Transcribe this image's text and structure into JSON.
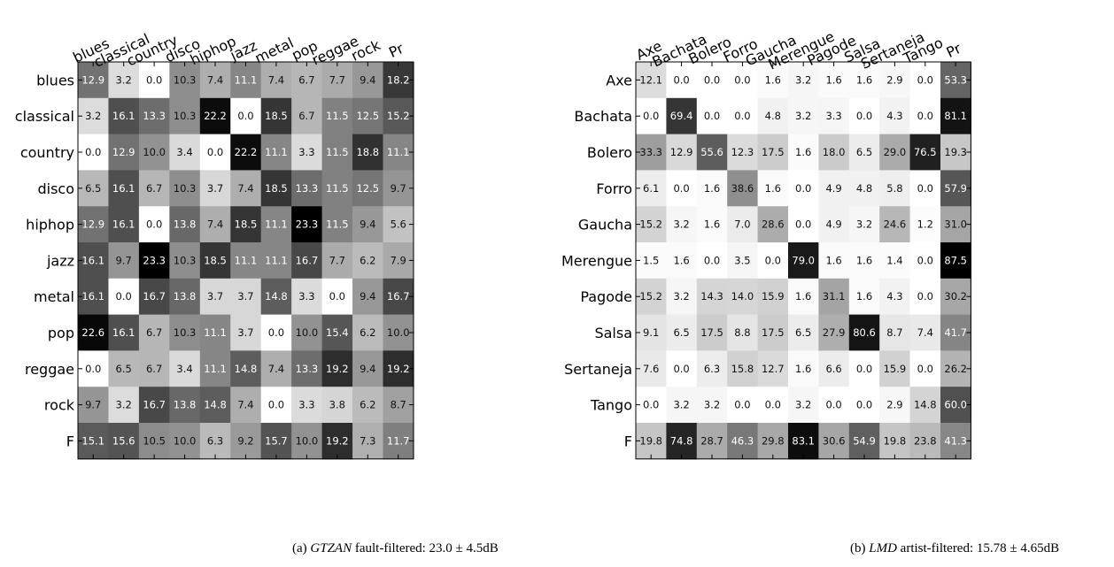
{
  "chart_data": [
    {
      "type": "heatmap",
      "caption": {
        "prefix": "(a) ",
        "dataset": "GTZAN",
        "rest": " fault-filtered: 23.0 ± 4.5dB"
      },
      "columns": [
        "blues",
        "classical",
        "country",
        "disco",
        "hiphop",
        "jazz",
        "metal",
        "pop",
        "reggae",
        "rock",
        "Pr"
      ],
      "rows": [
        "blues",
        "classical",
        "country",
        "disco",
        "hiphop",
        "jazz",
        "metal",
        "pop",
        "reggae",
        "rock",
        "F"
      ],
      "values": [
        [
          12.9,
          3.2,
          0.0,
          10.3,
          7.4,
          11.1,
          7.4,
          6.7,
          7.7,
          9.4,
          18.2
        ],
        [
          3.2,
          16.1,
          13.3,
          10.3,
          22.2,
          0.0,
          18.5,
          6.7,
          11.5,
          12.5,
          15.2
        ],
        [
          0.0,
          12.9,
          10.0,
          3.4,
          0.0,
          22.2,
          11.1,
          3.3,
          11.5,
          18.8,
          11.1
        ],
        [
          6.5,
          16.1,
          6.7,
          10.3,
          3.7,
          7.4,
          18.5,
          13.3,
          11.5,
          12.5,
          9.7
        ],
        [
          12.9,
          16.1,
          0.0,
          13.8,
          7.4,
          18.5,
          11.1,
          23.3,
          11.5,
          9.4,
          5.6
        ],
        [
          16.1,
          9.7,
          23.3,
          10.3,
          18.5,
          11.1,
          11.1,
          16.7,
          7.7,
          6.2,
          7.9
        ],
        [
          16.1,
          0.0,
          16.7,
          13.8,
          3.7,
          3.7,
          14.8,
          3.3,
          0.0,
          9.4,
          16.7
        ],
        [
          22.6,
          16.1,
          6.7,
          10.3,
          11.1,
          3.7,
          0.0,
          10.0,
          15.4,
          6.2,
          10.0
        ],
        [
          0.0,
          6.5,
          6.7,
          3.4,
          11.1,
          14.8,
          7.4,
          13.3,
          19.2,
          9.4,
          19.2
        ],
        [
          9.7,
          3.2,
          16.7,
          13.8,
          14.8,
          7.4,
          0.0,
          3.3,
          3.8,
          6.2,
          8.7
        ],
        [
          15.1,
          15.6,
          10.5,
          10.0,
          6.3,
          9.2,
          15.7,
          10.0,
          19.2,
          7.3,
          11.7
        ]
      ],
      "colormap": "gray_r",
      "color_scale_max": 23.3
    },
    {
      "type": "heatmap",
      "caption": {
        "prefix": "(b) ",
        "dataset": "LMD",
        "rest": " artist-filtered: 15.78 ± 4.65dB"
      },
      "columns": [
        "Axe",
        "Bachata",
        "Bolero",
        "Forro",
        "Gaucha",
        "Merengue",
        "Pagode",
        "Salsa",
        "Sertaneja",
        "Tango",
        "Pr"
      ],
      "rows": [
        "Axe",
        "Bachata",
        "Bolero",
        "Forro",
        "Gaucha",
        "Merengue",
        "Pagode",
        "Salsa",
        "Sertaneja",
        "Tango",
        "F"
      ],
      "values": [
        [
          12.1,
          0.0,
          0.0,
          0.0,
          1.6,
          3.2,
          1.6,
          1.6,
          2.9,
          0.0,
          53.3
        ],
        [
          0.0,
          69.4,
          0.0,
          0.0,
          4.8,
          3.2,
          3.3,
          0.0,
          4.3,
          0.0,
          81.1
        ],
        [
          33.3,
          12.9,
          55.6,
          12.3,
          17.5,
          1.6,
          18.0,
          6.5,
          29.0,
          76.5,
          19.3
        ],
        [
          6.1,
          0.0,
          1.6,
          38.6,
          1.6,
          0.0,
          4.9,
          4.8,
          5.8,
          0.0,
          57.9
        ],
        [
          15.2,
          3.2,
          1.6,
          7.0,
          28.6,
          0.0,
          4.9,
          3.2,
          24.6,
          1.2,
          31.0
        ],
        [
          1.5,
          1.6,
          0.0,
          3.5,
          0.0,
          79.0,
          1.6,
          1.6,
          1.4,
          0.0,
          87.5
        ],
        [
          15.2,
          3.2,
          14.3,
          14.0,
          15.9,
          1.6,
          31.1,
          1.6,
          4.3,
          0.0,
          30.2
        ],
        [
          9.1,
          6.5,
          17.5,
          8.8,
          17.5,
          6.5,
          27.9,
          80.6,
          8.7,
          7.4,
          41.7
        ],
        [
          7.6,
          0.0,
          6.3,
          15.8,
          12.7,
          1.6,
          6.6,
          0.0,
          15.9,
          0.0,
          26.2
        ],
        [
          0.0,
          3.2,
          3.2,
          0.0,
          0.0,
          3.2,
          0.0,
          0.0,
          2.9,
          14.8,
          60.0
        ],
        [
          19.8,
          74.8,
          28.7,
          46.3,
          29.8,
          83.1,
          30.6,
          54.9,
          19.8,
          23.8,
          41.3
        ]
      ],
      "colormap": "gray_r",
      "color_scale_max": 87.5
    }
  ]
}
